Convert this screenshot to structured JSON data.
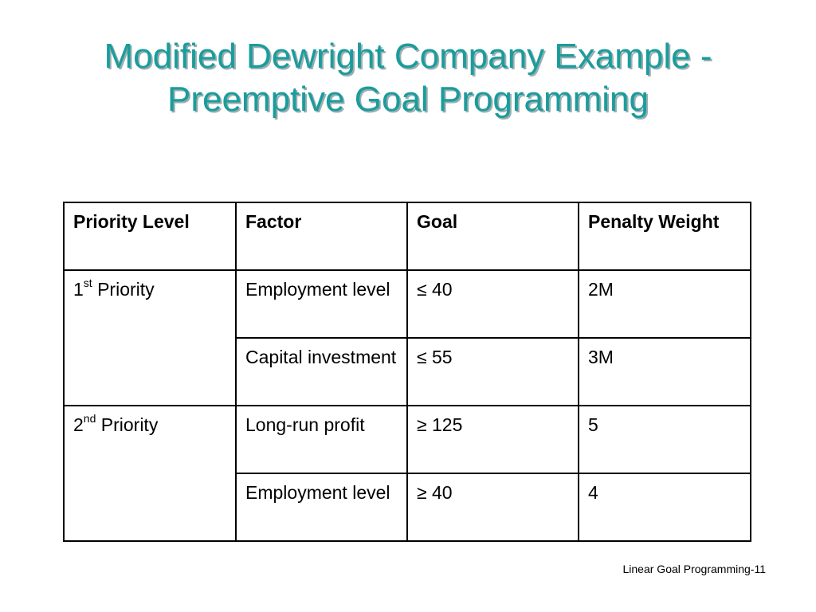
{
  "title": {
    "line1": "Modified Dewright Company Example -",
    "line2": "Preemptive Goal Programming"
  },
  "colors": {
    "title": "#1b9c9c",
    "title_shadow": "#9aaeb0"
  },
  "table": {
    "headers": {
      "priority_level": "Priority Level",
      "factor": "Factor",
      "goal": "Goal",
      "penalty_weight": "Penalty Weight"
    },
    "groups": [
      {
        "priority_num": "1",
        "priority_sup": "st",
        "priority_word": "Priority",
        "rows": [
          {
            "factor": "Employment level",
            "goal": "≤ 40",
            "weight": "2M"
          },
          {
            "factor": "Capital investment",
            "goal": "≤ 55",
            "weight": "3M"
          }
        ]
      },
      {
        "priority_num": "2",
        "priority_sup": "nd",
        "priority_word": "Priority",
        "rows": [
          {
            "factor": "Long-run profit",
            "goal": "≥ 125",
            "weight": "5"
          },
          {
            "factor": "Employment level",
            "goal": "≥ 40",
            "weight": "4"
          }
        ]
      }
    ]
  },
  "footer": "Linear Goal Programming-11"
}
